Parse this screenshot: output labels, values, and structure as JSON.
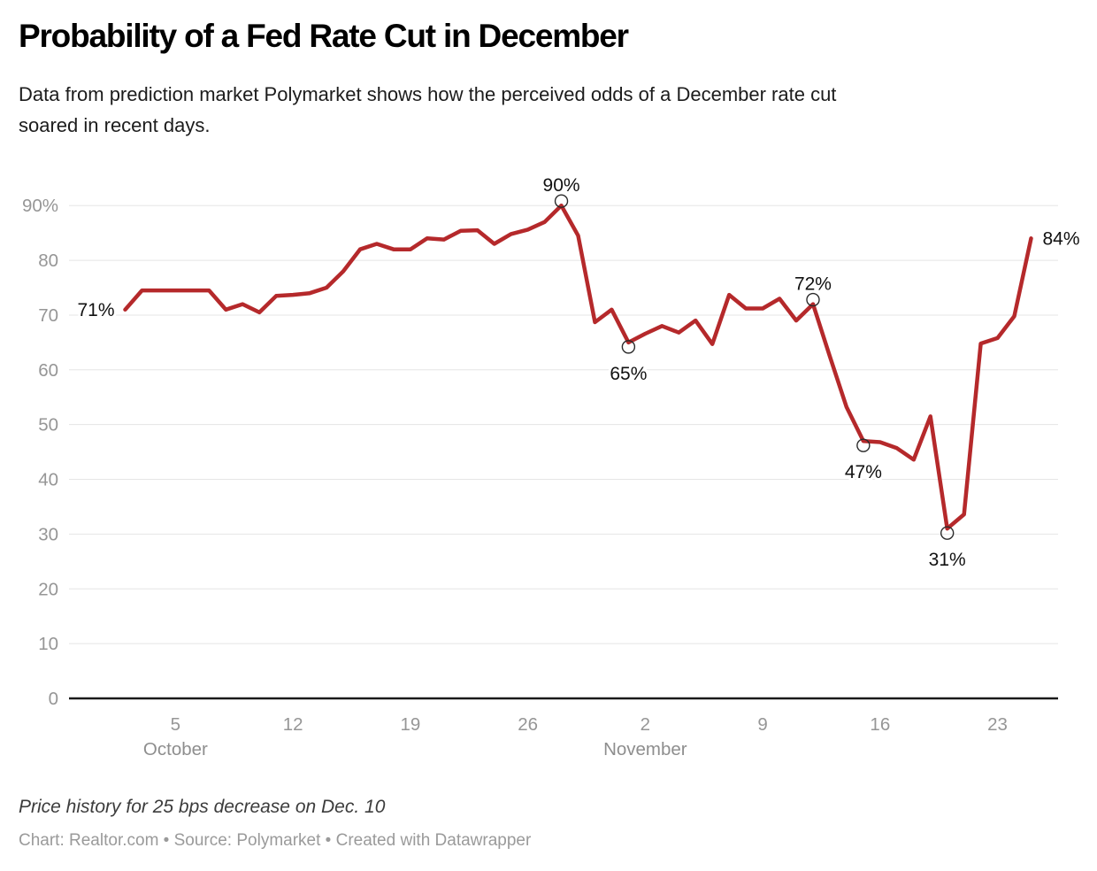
{
  "header": {
    "title": "Probability of a Fed Rate Cut in December",
    "subtitle": "Data from prediction market Polymarket shows how the perceived odds of a December rate cut soared in recent days."
  },
  "footer": {
    "note": "Price history for 25 bps decrease on Dec. 10",
    "attribution": "Chart: Realtor.com • Source: Polymarket • Created with Datawrapper"
  },
  "colors": {
    "line": "#b5292b",
    "grid": "#e5e5e5",
    "baseline": "#1a1a1a",
    "axis_text": "#969696",
    "month_text": "#8e8e8e",
    "annotation_text": "#111111",
    "marker_stroke": "#2b2b2b",
    "background": "#ffffff"
  },
  "chart_data": {
    "type": "line",
    "title": "Probability of a Fed Rate Cut in December",
    "xlabel": "",
    "ylabel": "",
    "ylim": [
      0,
      90
    ],
    "grid": "horizontal",
    "legend": "none",
    "series": [
      {
        "name": "Price history for 25 bps decrease on Dec. 10",
        "x": [
          "Oct 2",
          "Oct 3",
          "Oct 4",
          "Oct 5",
          "Oct 6",
          "Oct 7",
          "Oct 8",
          "Oct 9",
          "Oct 10",
          "Oct 11",
          "Oct 12",
          "Oct 13",
          "Oct 14",
          "Oct 15",
          "Oct 16",
          "Oct 17",
          "Oct 18",
          "Oct 19",
          "Oct 20",
          "Oct 21",
          "Oct 22",
          "Oct 23",
          "Oct 24",
          "Oct 25",
          "Oct 26",
          "Oct 27",
          "Oct 28",
          "Oct 29",
          "Oct 30",
          "Oct 31",
          "Nov 1",
          "Nov 2",
          "Nov 3",
          "Nov 4",
          "Nov 5",
          "Nov 6",
          "Nov 7",
          "Nov 8",
          "Nov 9",
          "Nov 10",
          "Nov 11",
          "Nov 12",
          "Nov 13",
          "Nov 14",
          "Nov 15",
          "Nov 16",
          "Nov 17",
          "Nov 18",
          "Nov 19",
          "Nov 20",
          "Nov 21",
          "Nov 22",
          "Nov 23",
          "Nov 24",
          "Nov 25"
        ],
        "values": [
          71,
          74.5,
          74.5,
          74.5,
          74.5,
          74.5,
          71,
          72,
          70.5,
          73.5,
          73.7,
          74,
          75,
          78,
          82,
          83,
          82,
          82,
          84,
          83.8,
          85.4,
          85.5,
          83,
          84.8,
          85.6,
          87,
          90,
          84.5,
          68.7,
          71,
          65,
          66.6,
          68,
          66.8,
          69,
          64.7,
          73.7,
          71.2,
          71.2,
          73,
          69,
          72,
          62.5,
          53.2,
          47,
          46.8,
          45.7,
          43.6,
          51.5,
          31,
          33.6,
          64.8,
          65.8,
          69.8,
          84
        ]
      }
    ],
    "y_ticks": [
      {
        "value": 0,
        "label": "0"
      },
      {
        "value": 10,
        "label": "10"
      },
      {
        "value": 20,
        "label": "20"
      },
      {
        "value": 30,
        "label": "30"
      },
      {
        "value": 40,
        "label": "40"
      },
      {
        "value": 50,
        "label": "50"
      },
      {
        "value": 60,
        "label": "60"
      },
      {
        "value": 70,
        "label": "70"
      },
      {
        "value": 80,
        "label": "80"
      },
      {
        "value": 90,
        "label": "90%"
      }
    ],
    "x_ticks": [
      {
        "index": 3,
        "label": "5",
        "month_label": "October"
      },
      {
        "index": 10,
        "label": "12",
        "month_label": ""
      },
      {
        "index": 17,
        "label": "19",
        "month_label": ""
      },
      {
        "index": 24,
        "label": "26",
        "month_label": ""
      },
      {
        "index": 31,
        "label": "2",
        "month_label": "November"
      },
      {
        "index": 38,
        "label": "9",
        "month_label": ""
      },
      {
        "index": 45,
        "label": "16",
        "month_label": ""
      },
      {
        "index": 52,
        "label": "23",
        "month_label": ""
      }
    ],
    "annotations": [
      {
        "index": 0,
        "label": "71%",
        "placement": "left",
        "marker": false
      },
      {
        "index": 26,
        "label": "90%",
        "placement": "above",
        "marker": true
      },
      {
        "index": 30,
        "label": "65%",
        "placement": "below",
        "marker": true
      },
      {
        "index": 41,
        "label": "72%",
        "placement": "above",
        "marker": true
      },
      {
        "index": 44,
        "label": "47%",
        "placement": "below",
        "marker": true
      },
      {
        "index": 49,
        "label": "31%",
        "placement": "below",
        "marker": true
      },
      {
        "index": 54,
        "label": "84%",
        "placement": "right",
        "marker": false
      }
    ]
  }
}
